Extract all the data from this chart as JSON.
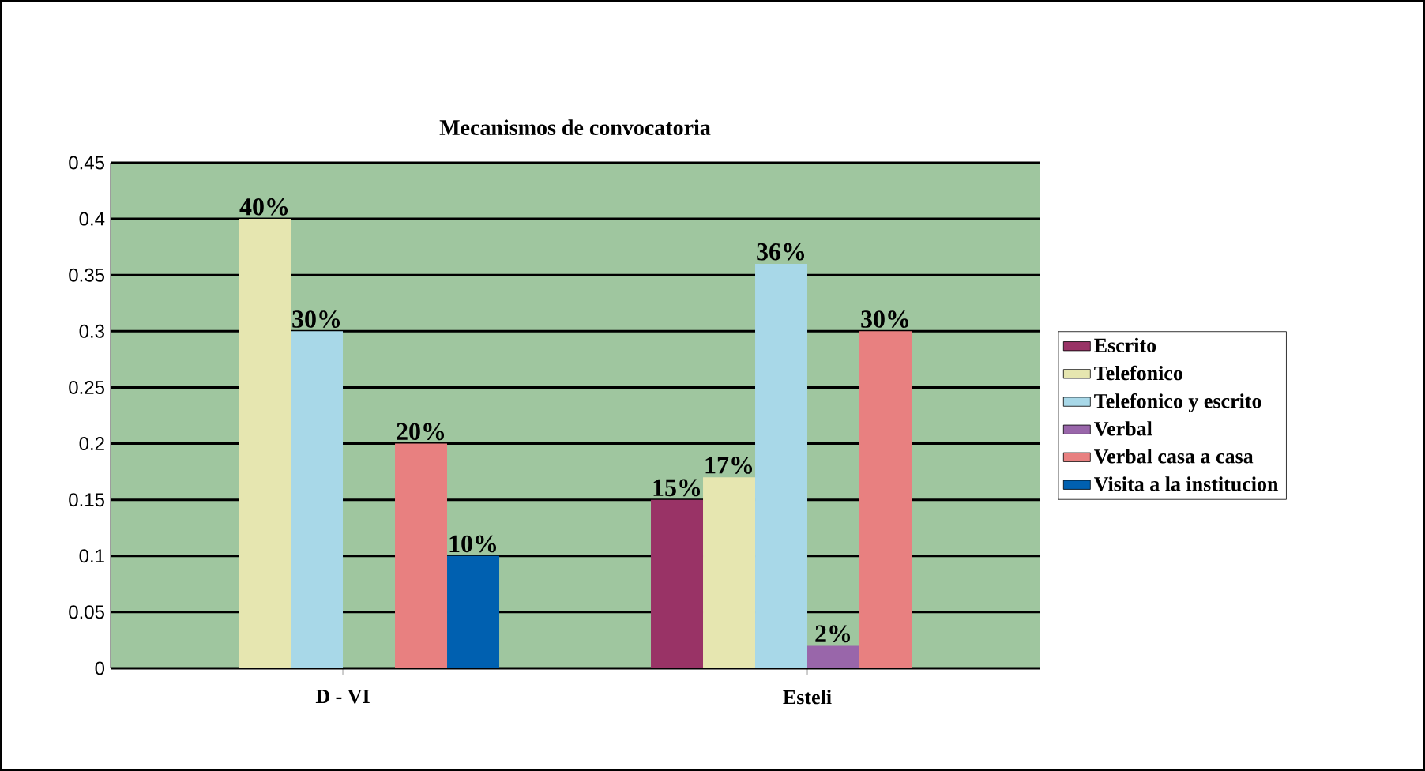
{
  "chart_data": {
    "type": "bar",
    "title": "Mecanismos de convocatoria",
    "categories": [
      "D - VI",
      "Esteli"
    ],
    "series": [
      {
        "name": "Escrito",
        "color": "#993366",
        "values": [
          null,
          0.15
        ],
        "value_labels": [
          null,
          "15%"
        ]
      },
      {
        "name": "Telefonico",
        "color": "#e6e6b0",
        "values": [
          0.4,
          0.17
        ],
        "value_labels": [
          "40%",
          "17%"
        ]
      },
      {
        "name": "Telefonico y escrito",
        "color": "#a8d8e8",
        "values": [
          0.3,
          0.36
        ],
        "value_labels": [
          "30%",
          "36%"
        ]
      },
      {
        "name": "Verbal",
        "color": "#9966aa",
        "values": [
          null,
          0.02
        ],
        "value_labels": [
          null,
          "2%"
        ]
      },
      {
        "name": "Verbal casa a casa",
        "color": "#e88080",
        "values": [
          0.2,
          0.3
        ],
        "value_labels": [
          "20%",
          "30%"
        ]
      },
      {
        "name": "Visita a la institucion",
        "color": "#0060b0",
        "values": [
          0.1,
          null
        ],
        "value_labels": [
          "10%",
          null
        ]
      }
    ],
    "ylim": [
      0,
      0.45
    ],
    "yticks": [
      0,
      0.05,
      0.1,
      0.15,
      0.2,
      0.25,
      0.3,
      0.35,
      0.4,
      0.45
    ],
    "grid": "y",
    "legend": "right"
  }
}
